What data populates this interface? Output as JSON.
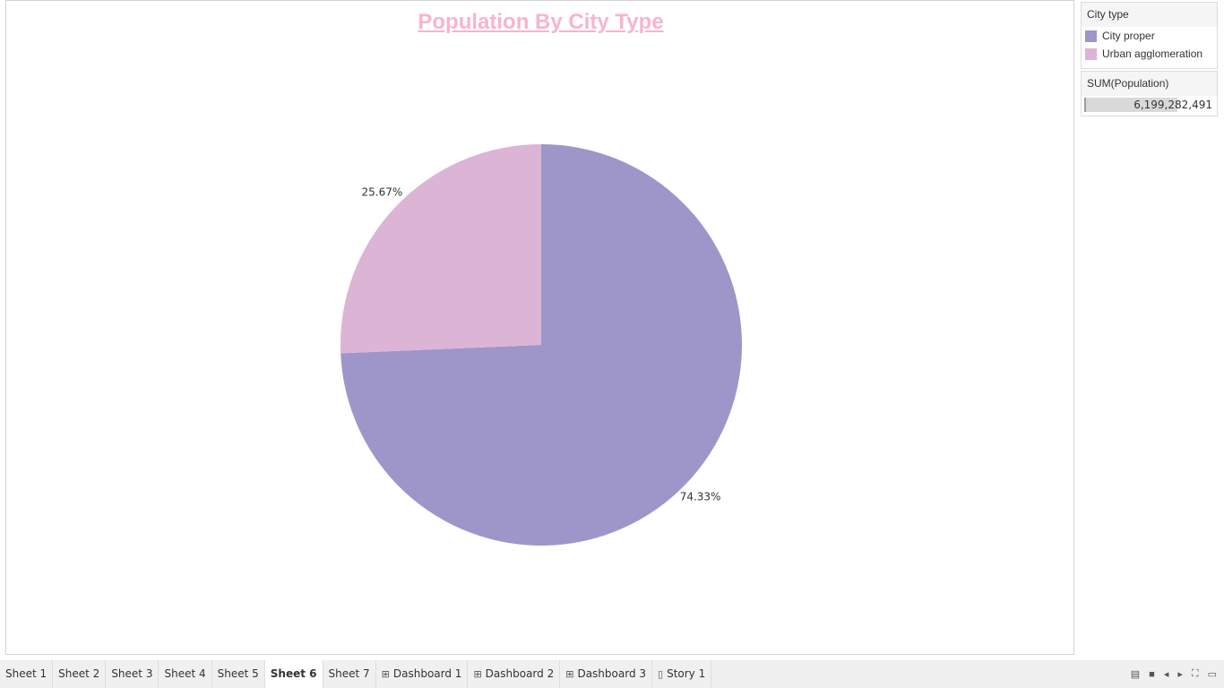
{
  "colors": {
    "title": "#f8b4cc",
    "city_proper": "#9e95c9",
    "urban_agglomeration": "#dcb4d5"
  },
  "chart_data": {
    "type": "pie",
    "title": "Population By City Type",
    "slices": [
      {
        "label": "City proper",
        "value": 74.33,
        "data_label": "74.33%"
      },
      {
        "label": "Urban agglomeration",
        "value": 25.67,
        "data_label": "25.67%"
      }
    ]
  },
  "legend": {
    "title": "City type",
    "items": [
      {
        "label": "City proper",
        "color": "#9e95c9"
      },
      {
        "label": "Urban agglomeration",
        "color": "#dcb4d5"
      }
    ]
  },
  "size_legend": {
    "title": "SUM(Population)",
    "value": "6,199,282,491",
    "fill_fraction": 0.7
  },
  "tabs": [
    {
      "label": "Sheet 1",
      "icon": "",
      "active": false
    },
    {
      "label": "Sheet 2",
      "icon": "",
      "active": false
    },
    {
      "label": "Sheet 3",
      "icon": "",
      "active": false
    },
    {
      "label": "Sheet 4",
      "icon": "",
      "active": false
    },
    {
      "label": "Sheet 5",
      "icon": "",
      "active": false
    },
    {
      "label": "Sheet 6",
      "icon": "",
      "active": true
    },
    {
      "label": "Sheet 7",
      "icon": "",
      "active": false
    },
    {
      "label": "Dashboard 1",
      "icon": "dashboard-icon",
      "active": false
    },
    {
      "label": "Dashboard 2",
      "icon": "dashboard-icon",
      "active": false
    },
    {
      "label": "Dashboard 3",
      "icon": "dashboard-icon",
      "active": false
    },
    {
      "label": "Story 1",
      "icon": "story-icon",
      "active": false
    }
  ],
  "controls": [
    {
      "name": "show-filmstrip-icon",
      "glyph": "▤"
    },
    {
      "name": "show-tabs-icon",
      "glyph": "■"
    },
    {
      "name": "previous-sheet-icon",
      "glyph": "◂"
    },
    {
      "name": "next-sheet-icon",
      "glyph": "▸"
    },
    {
      "name": "fullscreen-icon",
      "glyph": "⛶"
    },
    {
      "name": "presentation-mode-icon",
      "glyph": "▭"
    }
  ]
}
